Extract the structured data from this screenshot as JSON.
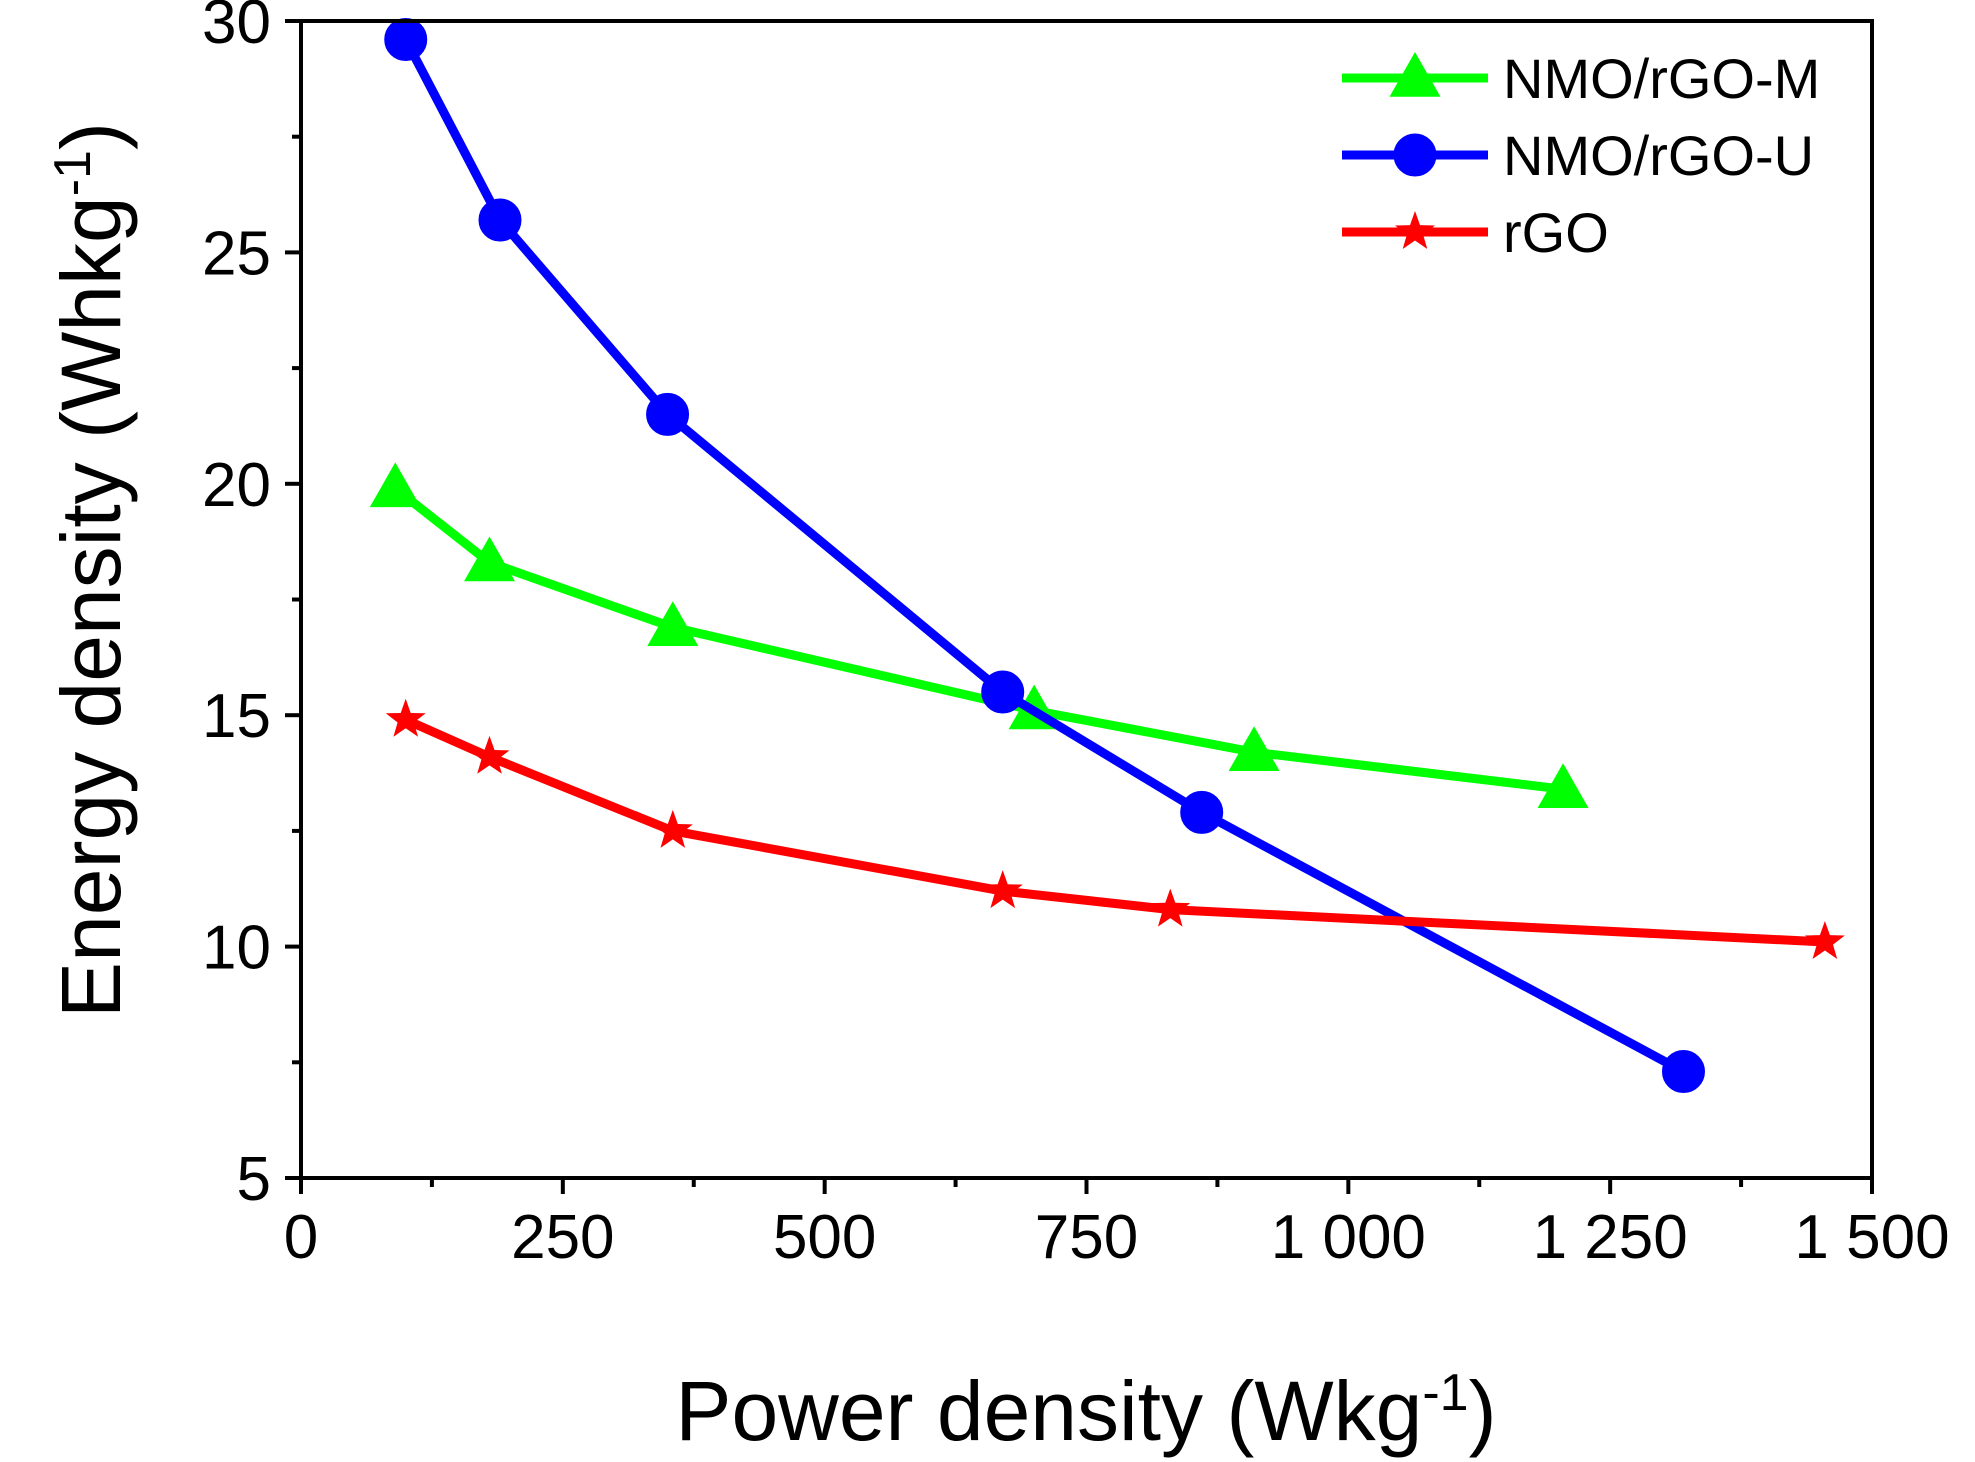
{
  "chart_data": {
    "type": "line",
    "title": "",
    "xlabel": "Power density (Wkg",
    "xlabel_sup": "-1",
    "xlabel_end": ")",
    "ylabel": "Energy density (Whkg",
    "ylabel_sup": "-1",
    "ylabel_end": ")",
    "xlim": [
      0,
      1500
    ],
    "ylim": [
      5,
      30
    ],
    "x_ticks": [
      0,
      250,
      500,
      750,
      1000,
      1250,
      1500
    ],
    "x_tick_labels": [
      "0",
      "250",
      "500",
      "750",
      "1 000",
      "1 250",
      "1 500"
    ],
    "y_ticks": [
      5,
      10,
      15,
      20,
      25,
      30
    ],
    "y_tick_labels": [
      "5",
      "10",
      "15",
      "20",
      "25",
      "30"
    ],
    "grid": false,
    "legend_position": "top-right",
    "series": [
      {
        "name": "NMO/rGO-M",
        "color": "#00ff00",
        "marker": "triangle",
        "x": [
          90,
          180,
          355,
          700,
          910,
          1205
        ],
        "y": [
          19.9,
          18.3,
          16.9,
          15.1,
          14.2,
          13.4
        ]
      },
      {
        "name": "NMO/rGO-U",
        "color": "#0000ff",
        "marker": "circle",
        "x": [
          100,
          190,
          350,
          670,
          860,
          1320
        ],
        "y": [
          29.6,
          25.7,
          21.5,
          15.5,
          12.9,
          7.3
        ]
      },
      {
        "name": "rGO",
        "color": "#ff0000",
        "marker": "star",
        "x": [
          100,
          180,
          355,
          670,
          830,
          1455
        ],
        "y": [
          14.9,
          14.1,
          12.5,
          11.2,
          10.8,
          10.1
        ]
      }
    ]
  }
}
